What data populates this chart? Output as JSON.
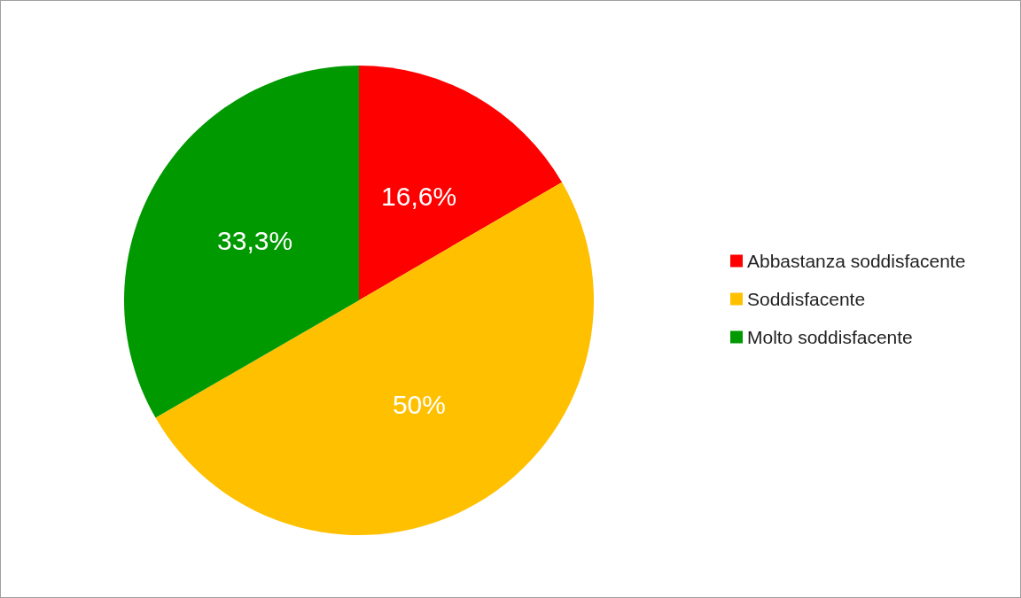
{
  "chart_data": {
    "type": "pie",
    "categories": [
      "Abbastanza soddisfacente",
      "Soddisfacente",
      "Molto soddisfacente"
    ],
    "values": [
      16.6,
      50,
      33.3
    ],
    "colors": [
      "#ff0000",
      "#ffc000",
      "#009900"
    ],
    "value_labels": [
      "16,6%",
      "50%",
      "33,3%"
    ],
    "legend": "right"
  }
}
